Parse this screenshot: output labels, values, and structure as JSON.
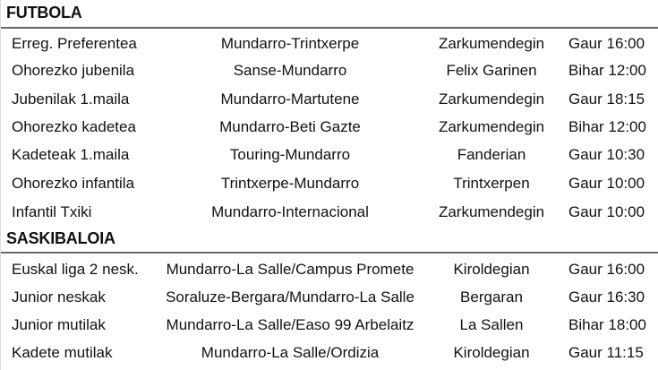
{
  "sections": [
    {
      "title": "FUTBOLA",
      "rows": [
        [
          "Erreg. Preferentea",
          "Mundarro-Trintxerpe",
          "Zarkumendegin",
          "Gaur 16:00"
        ],
        [
          "Ohorezko jubenila",
          "Sanse-Mundarro",
          "Felix Garinen",
          "Bihar 12:00"
        ],
        [
          "Jubenilak 1.maila",
          "Mundarro-Martutene",
          "Zarkumendegin",
          "Gaur 18:15"
        ],
        [
          "Ohorezko kadetea",
          "Mundarro-Beti Gazte",
          "Zarkumendegin",
          "Bihar 12:00"
        ],
        [
          "Kadeteak 1.maila",
          "Touring-Mundarro",
          "Fanderian",
          "Gaur 10:30"
        ],
        [
          "Ohorezko infantila",
          "Trintxerpe-Mundarro",
          "Trintxerpen",
          "Gaur 10:00"
        ],
        [
          "Infantil Txiki",
          "Mundarro-Internacional",
          "Zarkumendegin",
          "Gaur 10:00"
        ]
      ]
    },
    {
      "title": "SASKIBALOIA",
      "rows": [
        [
          "Euskal liga 2 nesk.",
          "Mundarro-La Salle/Campus Promete",
          "Kiroldegian",
          "Gaur 16:00"
        ],
        [
          "Junior neskak",
          "Soraluze-Bergara/Mundarro-La Salle",
          "Bergaran",
          "Gaur 16:30"
        ],
        [
          "Junior mutilak",
          "Mundarro-La Salle/Easo 99 Arbelaitz",
          "La Sallen",
          "Bihar 18:00"
        ],
        [
          "Kadete mutilak",
          "Mundarro-La Salle/Ordizia",
          "Kiroldegian",
          "Gaur 11:15"
        ]
      ]
    }
  ]
}
